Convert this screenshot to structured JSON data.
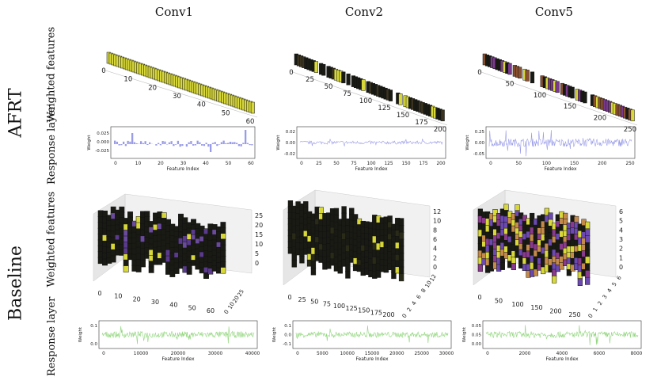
{
  "columns": [
    "Conv1",
    "Conv2",
    "Conv5"
  ],
  "row_groups": [
    {
      "label": "AFRT",
      "sub": [
        "Weighted features",
        "Response layer"
      ]
    },
    {
      "label": "Baseline",
      "sub": [
        "Weighted features",
        "Response layer"
      ]
    }
  ],
  "panels": {
    "afrt_weighted": [
      {
        "ticks": [
          "0",
          "10",
          "20",
          "30",
          "40",
          "50",
          "60"
        ]
      },
      {
        "ticks": [
          "0",
          "25",
          "50",
          "75",
          "100",
          "125",
          "150",
          "175",
          "200"
        ]
      },
      {
        "ticks": [
          "0",
          "50",
          "100",
          "150",
          "200",
          "250"
        ]
      }
    ],
    "afrt_response": [
      {
        "ylabel": "Weight",
        "xlabel": "Feature Index",
        "yticks": [
          "0.025",
          "0.000",
          "-0.025"
        ],
        "xticks": [
          "0",
          "10",
          "20",
          "30",
          "40",
          "50",
          "60"
        ]
      },
      {
        "ylabel": "Weight",
        "xlabel": "Feature Index",
        "yticks": [
          "0.02",
          "0.00",
          "-0.02"
        ],
        "xticks": [
          "0",
          "25",
          "50",
          "75",
          "100",
          "125",
          "150",
          "175",
          "200"
        ]
      },
      {
        "ylabel": "Weight",
        "xlabel": "Feature Index",
        "yticks": [
          "0.25",
          "0.00",
          "-0.05"
        ],
        "xticks": [
          "0",
          "50",
          "100",
          "150",
          "200",
          "250"
        ]
      }
    ],
    "baseline_weighted": [
      {
        "xticks": [
          "0",
          "10",
          "20",
          "30",
          "40",
          "50",
          "60"
        ],
        "zticks": [
          "0",
          "5",
          "10",
          "15",
          "20",
          "25"
        ],
        "yticks": [
          "0",
          "10",
          "20",
          "25"
        ]
      },
      {
        "xticks": [
          "0",
          "25",
          "50",
          "75",
          "100",
          "125",
          "150",
          "175",
          "200"
        ],
        "zticks": [
          "0",
          "2",
          "4",
          "6",
          "8",
          "10",
          "12"
        ],
        "yticks": [
          "0",
          "2",
          "4",
          "6",
          "8",
          "10",
          "12"
        ]
      },
      {
        "xticks": [
          "0",
          "50",
          "100",
          "150",
          "200",
          "250"
        ],
        "zticks": [
          "0",
          "1",
          "2",
          "3",
          "4",
          "5",
          "6"
        ],
        "yticks": [
          "0",
          "1",
          "2",
          "3",
          "4",
          "5",
          "6"
        ]
      }
    ],
    "baseline_response": [
      {
        "ylabel": "Weight",
        "xlabel": "Feature Index",
        "yticks": [
          "0.1",
          "0.0"
        ],
        "xticks": [
          "0",
          "10000",
          "20000",
          "30000",
          "40000"
        ]
      },
      {
        "ylabel": "Weight",
        "xlabel": "Feature Index",
        "yticks": [
          "0.1",
          "0.0",
          "-0.1"
        ],
        "xticks": [
          "0",
          "5000",
          "10000",
          "15000",
          "20000",
          "25000",
          "30000"
        ]
      },
      {
        "ylabel": "Weight",
        "xlabel": "Feature Index",
        "yticks": [
          "0.05",
          "0.05",
          "0.00"
        ],
        "xticks": [
          "0",
          "2000",
          "4000",
          "6000",
          "8000"
        ]
      }
    ]
  },
  "colors": {
    "afrt_line": "#9a9ce8",
    "baseline_line": "#8fd57a",
    "feature_yellow": "#d8d83a",
    "feature_purple": "#5a3a8c",
    "feature_dark": "#1a1a14"
  }
}
